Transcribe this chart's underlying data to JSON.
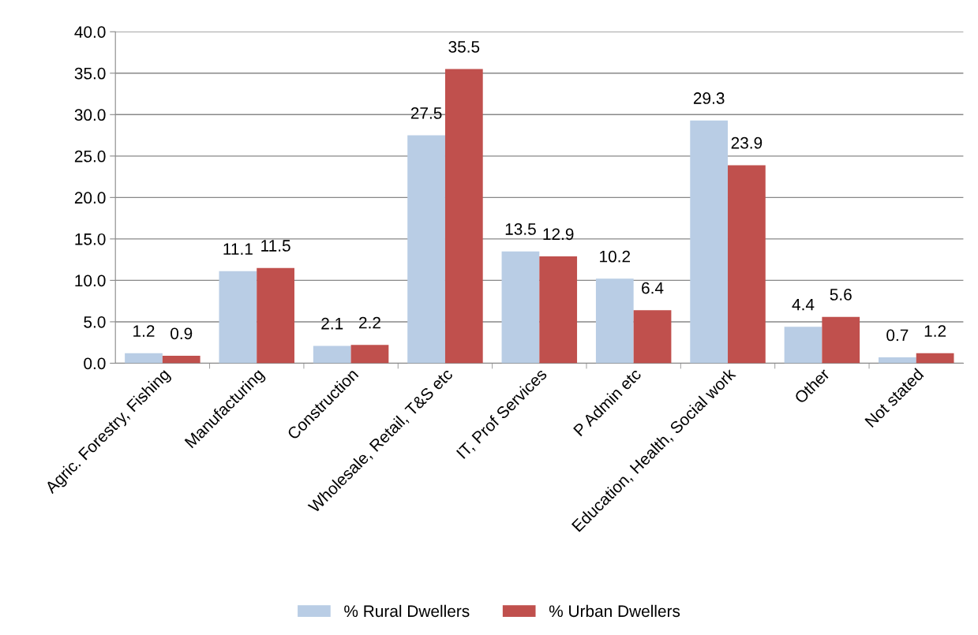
{
  "chart_data": {
    "type": "bar",
    "categories": [
      "Agric. Forestry, Fishing",
      "Manufacturing",
      "Construction",
      "Wholesale, Retail, T&S etc",
      "IT, Prof Services",
      "P Admin etc",
      "Education, Health, Social work",
      "Other",
      "Not stated"
    ],
    "series": [
      {
        "name": "% Rural Dwellers",
        "color": "#b9cde5",
        "values": [
          1.2,
          11.1,
          2.1,
          27.5,
          13.5,
          10.2,
          29.3,
          4.4,
          0.7
        ]
      },
      {
        "name": "% Urban Dwellers",
        "color": "#c0504d",
        "values": [
          0.9,
          11.5,
          2.2,
          35.5,
          12.9,
          6.4,
          23.9,
          5.6,
          1.2
        ]
      }
    ],
    "ylim": [
      0,
      40
    ],
    "yticks": [
      {
        "value": 0,
        "label": "0.0"
      },
      {
        "value": 5,
        "label": "5.0"
      },
      {
        "value": 10,
        "label": "10.0"
      },
      {
        "value": 15,
        "label": "15.0"
      },
      {
        "value": 20,
        "label": "20.0"
      },
      {
        "value": 25,
        "label": "25.0"
      },
      {
        "value": 30,
        "label": "30.0"
      },
      {
        "value": 35,
        "label": "35.0"
      },
      {
        "value": 40,
        "label": "40.0"
      }
    ],
    "grid": "y",
    "legend": "bottom",
    "data_labels": true
  }
}
